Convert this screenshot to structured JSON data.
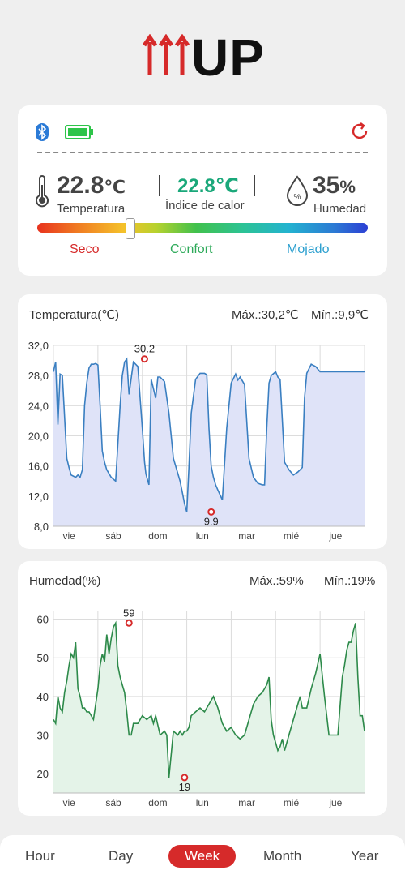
{
  "brand": {
    "logo_text": "UP",
    "arrow_color": "#d62a2a"
  },
  "status": {
    "bluetooth_icon": "bluetooth-icon",
    "battery_icon": "battery-full-icon",
    "refresh_icon": "refresh-icon",
    "temperature_value": "22.8",
    "temperature_unit": "℃",
    "temperature_label": "Temperatura",
    "heat_index_value": "22.8℃",
    "heat_index_label": "Índice de calor",
    "humidity_value": "35",
    "humidity_unit": "%",
    "humidity_label": "Humedad",
    "comfort_level": 0.28,
    "zones": [
      {
        "label": "Seco",
        "color": "#d62a2a"
      },
      {
        "label": "Confort",
        "color": "#2eaa5a"
      },
      {
        "label": "Mojado",
        "color": "#2b9fcf"
      }
    ]
  },
  "temperature_chart": {
    "title": "Temperatura(℃)",
    "max_label": "Máx.:30,2℃",
    "min_label": "Mín.:9,9℃"
  },
  "humidity_chart": {
    "title": "Humedad(%)",
    "max_label": "Máx.:59%",
    "min_label": "Mín.:19%"
  },
  "chart_data": [
    {
      "type": "area",
      "title": "Temperatura(℃)",
      "color": "#3a7fc1",
      "fill": "#dfe3f8",
      "ylim": [
        8,
        32
      ],
      "yticks": [
        "32,0",
        "28,0",
        "24,0",
        "20,0",
        "16,0",
        "12,0",
        "8,0"
      ],
      "ytick_values": [
        32,
        28,
        24,
        20,
        16,
        12,
        8
      ],
      "xlim": [
        0,
        7
      ],
      "x_labels": [
        "vie",
        "sáb",
        "dom",
        "lun",
        "mar",
        "mié",
        "jue"
      ],
      "x_label_positions": [
        0.35,
        1.35,
        2.35,
        3.35,
        4.35,
        5.35,
        6.35
      ],
      "grid": true,
      "max_point": {
        "x": 2.05,
        "y": 30.2,
        "label": "30.2"
      },
      "min_point": {
        "x": 3.55,
        "y": 9.9,
        "label": "9.9"
      },
      "x": [
        0,
        0.05,
        0.1,
        0.15,
        0.2,
        0.3,
        0.35,
        0.4,
        0.5,
        0.55,
        0.6,
        0.65,
        0.7,
        0.75,
        0.8,
        0.85,
        0.9,
        0.95,
        1.0,
        1.05,
        1.1,
        1.15,
        1.2,
        1.3,
        1.4,
        1.5,
        1.55,
        1.6,
        1.65,
        1.7,
        1.8,
        1.9,
        1.95,
        2.0,
        2.05,
        2.08,
        2.1,
        2.15,
        2.2,
        2.3,
        2.35,
        2.4,
        2.5,
        2.6,
        2.7,
        2.8,
        2.85,
        2.9,
        2.95,
        3.0,
        3.05,
        3.1,
        3.2,
        3.3,
        3.4,
        3.45,
        3.5,
        3.55,
        3.6,
        3.65,
        3.7,
        3.8,
        3.9,
        4.0,
        4.1,
        4.15,
        4.2,
        4.3,
        4.4,
        4.5,
        4.6,
        4.7,
        4.75,
        4.8,
        4.85,
        4.9,
        5.0,
        5.05,
        5.1,
        5.2,
        5.3,
        5.4,
        5.5,
        5.55,
        5.6,
        5.65,
        5.7,
        5.8,
        5.9,
        6.0,
        6.05,
        6.1,
        6.2,
        6.3,
        6.35,
        6.4,
        6.45,
        6.5,
        6.6,
        6.7,
        6.8,
        6.85,
        6.9,
        6.95,
        7.0
      ],
      "y": [
        28.5,
        29.8,
        21.5,
        28.2,
        28.0,
        17,
        15.8,
        14.8,
        14.5,
        14.8,
        14.5,
        15.5,
        24,
        27,
        29,
        29.5,
        29.5,
        29.6,
        29.4,
        24,
        18,
        16.5,
        15.5,
        14.5,
        14.0,
        24,
        28,
        29.8,
        30.2,
        25.5,
        29.8,
        29.2,
        25,
        21,
        16.5,
        15,
        14.5,
        13.5,
        27.5,
        25,
        27.8,
        27.8,
        27.2,
        23,
        17,
        15,
        14,
        12.5,
        11,
        9.9,
        16,
        23,
        27.5,
        28.3,
        28.3,
        28.1,
        21,
        16,
        14.5,
        13.5,
        12.8,
        11.5,
        21,
        27,
        28.2,
        27.4,
        27.8,
        26.8,
        17,
        14.5,
        13.7,
        13.5,
        13.5,
        21,
        27,
        28,
        28.5,
        27.8,
        27.5,
        16.5,
        15.5,
        14.8,
        15.2,
        15.5,
        15.8,
        25,
        28.3,
        29.5,
        29.2,
        28.5,
        28.5,
        28.5,
        28.5,
        28.5,
        28.5,
        28.5,
        28.5,
        28.5,
        28.5,
        28.5,
        28.5,
        28.5,
        28.5,
        28.5,
        28.5
      ]
    },
    {
      "type": "area",
      "title": "Humedad(%)",
      "color": "#2d8a4a",
      "fill": "#e4f3e8",
      "ylim": [
        15,
        62
      ],
      "yticks": [
        "60",
        "50",
        "40",
        "30",
        "20"
      ],
      "ytick_values": [
        60,
        50,
        40,
        30,
        20
      ],
      "xlim": [
        0,
        7
      ],
      "x_labels": [
        "vie",
        "sáb",
        "dom",
        "lun",
        "mar",
        "mié",
        "jue"
      ],
      "x_label_positions": [
        0.35,
        1.35,
        2.35,
        3.35,
        4.35,
        5.35,
        6.35
      ],
      "grid": true,
      "max_point": {
        "x": 1.7,
        "y": 59,
        "label": "59"
      },
      "min_point": {
        "x": 2.95,
        "y": 19,
        "label": "19"
      },
      "x": [
        0,
        0.05,
        0.1,
        0.15,
        0.2,
        0.25,
        0.3,
        0.35,
        0.4,
        0.45,
        0.5,
        0.55,
        0.6,
        0.65,
        0.7,
        0.75,
        0.8,
        0.9,
        1.0,
        1.05,
        1.1,
        1.15,
        1.2,
        1.25,
        1.3,
        1.35,
        1.4,
        1.45,
        1.5,
        1.55,
        1.6,
        1.65,
        1.7,
        1.75,
        1.8,
        1.85,
        1.9,
        2.0,
        2.1,
        2.2,
        2.25,
        2.3,
        2.4,
        2.5,
        2.55,
        2.6,
        2.7,
        2.8,
        2.85,
        2.9,
        2.95,
        3.0,
        3.05,
        3.1,
        3.2,
        3.3,
        3.4,
        3.5,
        3.6,
        3.7,
        3.75,
        3.8,
        3.9,
        4.0,
        4.1,
        4.2,
        4.3,
        4.4,
        4.5,
        4.6,
        4.7,
        4.8,
        4.85,
        4.9,
        4.95,
        5.0,
        5.05,
        5.1,
        5.15,
        5.2,
        5.3,
        5.4,
        5.5,
        5.55,
        5.6,
        5.7,
        5.8,
        5.9,
        6.0,
        6.1,
        6.2,
        6.25,
        6.3,
        6.4,
        6.5,
        6.55,
        6.6,
        6.65,
        6.7,
        6.75,
        6.8,
        6.85,
        6.9,
        6.95,
        7.0
      ],
      "y": [
        34,
        33,
        40,
        37,
        36,
        41,
        44,
        48,
        51,
        50,
        54,
        42,
        40,
        37,
        37,
        36,
        36,
        34,
        42,
        48,
        51,
        49,
        56,
        51,
        55,
        58,
        59,
        48,
        45,
        43,
        41,
        36,
        30,
        30,
        33,
        33,
        33,
        35,
        34,
        35,
        33,
        35,
        30,
        31,
        30,
        19,
        31,
        30,
        31,
        30,
        31,
        31,
        32,
        35,
        36,
        37,
        36,
        38,
        40,
        37,
        35,
        33,
        31,
        32,
        30,
        29,
        30,
        34,
        38,
        40,
        41,
        43,
        45,
        34,
        30,
        28,
        26,
        27,
        29,
        26,
        30,
        34,
        38,
        40,
        37,
        37,
        42,
        46,
        51,
        40,
        30,
        30,
        30,
        30,
        45,
        48,
        52,
        54,
        54,
        57,
        59,
        45,
        35,
        35,
        31
      ]
    }
  ],
  "tabs": [
    {
      "label": "Hour",
      "active": false
    },
    {
      "label": "Day",
      "active": false
    },
    {
      "label": "Week",
      "active": true
    },
    {
      "label": "Month",
      "active": false
    },
    {
      "label": "Year",
      "active": false
    }
  ]
}
